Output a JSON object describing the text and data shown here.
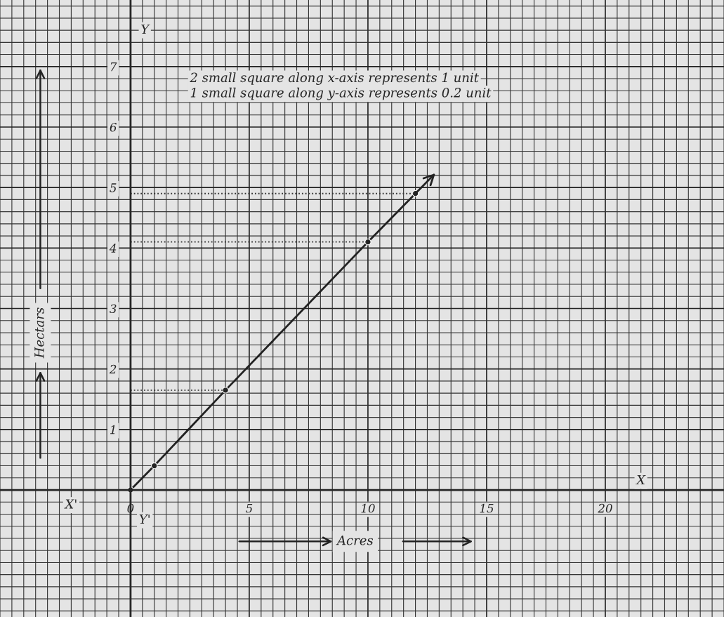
{
  "chart_data": {
    "type": "line",
    "xlabel": "Acres",
    "ylabel": "Hectars",
    "annotations": [
      "2 small square along x-axis represents 1 unit",
      "1 small square along y-axis represents 0.2 unit",
      "X'",
      "X",
      "Y",
      "Y'"
    ],
    "x": [
      0,
      1,
      4,
      10,
      12
    ],
    "series": [
      {
        "color": "#222222",
        "values": [
          0,
          0.4,
          1.65,
          4.1,
          4.9
        ]
      }
    ],
    "xlim": [
      -5.5,
      25
    ],
    "ylim": [
      -2.1,
      8.1
    ],
    "xticks": [
      0,
      5,
      10,
      15,
      20
    ],
    "yticks": [
      1,
      2,
      3,
      4,
      5,
      6,
      7
    ],
    "ref_lines": [
      {
        "axis": "y",
        "value": 1.65,
        "line_style": "dotted"
      },
      {
        "axis": "y",
        "value": 4.1,
        "line_style": "dotted"
      },
      {
        "axis": "y",
        "value": 4.9,
        "line_style": "dotted"
      }
    ],
    "grid": true,
    "marker": "circle",
    "line_style": "solid",
    "legend": false
  }
}
